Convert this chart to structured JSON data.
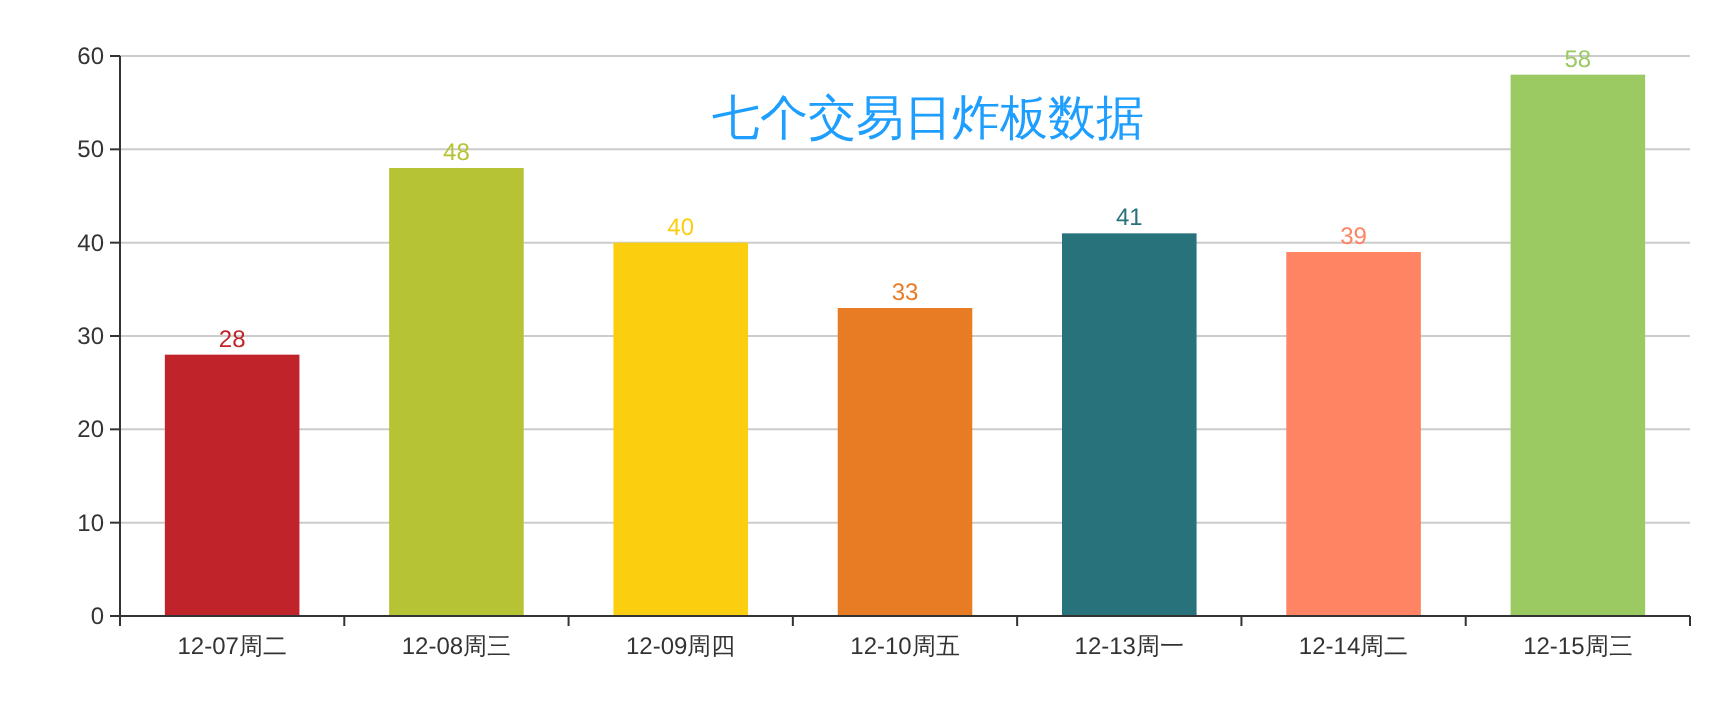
{
  "chart_data": {
    "type": "bar",
    "title": "七个交易日炸板数据",
    "categories": [
      "12-07周二",
      "12-08周三",
      "12-09周四",
      "12-10周五",
      "12-13周一",
      "12-14周二",
      "12-15周三"
    ],
    "values": [
      28,
      48,
      40,
      33,
      41,
      39,
      58
    ],
    "colors": [
      "#c1232b",
      "#b5c334",
      "#fcce10",
      "#e87c25",
      "#27727b",
      "#fe8463",
      "#9bca63"
    ],
    "ylim": [
      0,
      60
    ],
    "yticks": [
      0,
      10,
      20,
      30,
      40,
      50,
      60
    ],
    "grid": "y",
    "data_labels": true
  }
}
